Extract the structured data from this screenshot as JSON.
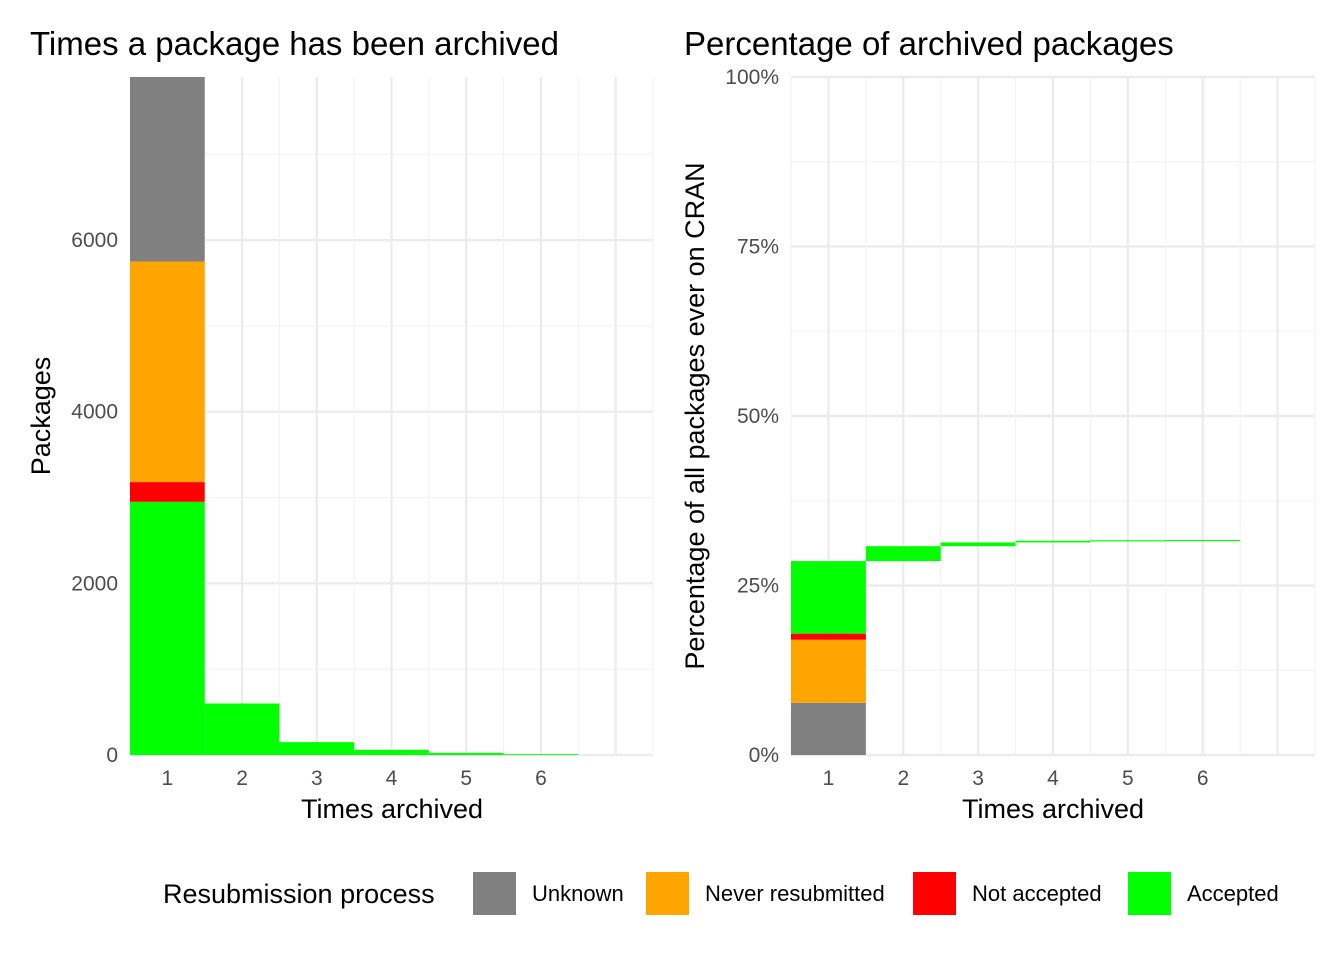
{
  "colors": {
    "Unknown": "#808080",
    "Never resubmitted": "#FFA500",
    "Not accepted": "#FF0000",
    "Accepted": "#00FF00"
  },
  "legend": {
    "title": "Resubmission process",
    "items": [
      "Unknown",
      "Never resubmitted",
      "Not accepted",
      "Accepted"
    ]
  },
  "chart_data": [
    {
      "type": "bar",
      "stacked": true,
      "title": "Times a package has been archived",
      "xlabel": "Times archived",
      "ylabel": "Packages",
      "categories": [
        "1",
        "2",
        "3",
        "4",
        "5",
        "6"
      ],
      "xlim": [
        0.5,
        7.5
      ],
      "ylim": [
        0,
        7900
      ],
      "yticks": [
        0,
        2000,
        4000,
        6000
      ],
      "ytick_labels": [
        "0",
        "2000",
        "4000",
        "6000"
      ],
      "grid": true,
      "series": [
        {
          "name": "Accepted",
          "values": [
            2950,
            600,
            150,
            60,
            25,
            10
          ]
        },
        {
          "name": "Not accepted",
          "values": [
            230,
            0,
            0,
            0,
            0,
            0
          ]
        },
        {
          "name": "Never resubmitted",
          "values": [
            2570,
            0,
            0,
            0,
            0,
            0
          ]
        },
        {
          "name": "Unknown",
          "values": [
            2150,
            0,
            0,
            0,
            0,
            0
          ]
        }
      ]
    },
    {
      "type": "waterfall",
      "title": "Percentage of archived packages",
      "xlabel": "Times archived",
      "ylabel": "Percentage of all packages ever on CRAN",
      "categories": [
        "1",
        "2",
        "3",
        "4",
        "5",
        "6"
      ],
      "xlim": [
        0.5,
        7.5
      ],
      "ylim": [
        0,
        100
      ],
      "yticks": [
        0,
        25,
        50,
        75,
        100
      ],
      "ytick_labels": [
        "0%",
        "25%",
        "50%",
        "75%",
        "100%"
      ],
      "grid": true,
      "segments": [
        {
          "x": 1,
          "name": "Unknown",
          "start": 0,
          "end": 7.7
        },
        {
          "x": 1,
          "name": "Never resubmitted",
          "start": 7.7,
          "end": 17.0
        },
        {
          "x": 1,
          "name": "Not accepted",
          "start": 17.0,
          "end": 17.9
        },
        {
          "x": 1,
          "name": "Accepted",
          "start": 17.9,
          "end": 28.6
        },
        {
          "x": 2,
          "name": "Accepted",
          "start": 28.6,
          "end": 30.8
        },
        {
          "x": 3,
          "name": "Accepted",
          "start": 30.8,
          "end": 31.35
        },
        {
          "x": 4,
          "name": "Accepted",
          "start": 31.35,
          "end": 31.6
        },
        {
          "x": 5,
          "name": "Accepted",
          "start": 31.6,
          "end": 31.68
        },
        {
          "x": 6,
          "name": "Accepted",
          "start": 31.68,
          "end": 31.72
        }
      ]
    }
  ]
}
